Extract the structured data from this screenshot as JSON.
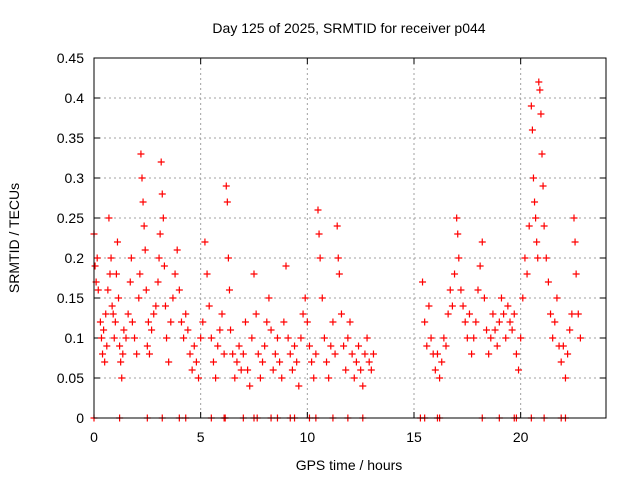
{
  "chart_data": {
    "type": "scatter",
    "title": "Day 125 of 2025, SRMTID for receiver p044",
    "xlabel": "GPS time / hours",
    "ylabel": "SRMTID / TECUs",
    "xlim": [
      0,
      24
    ],
    "ylim": [
      0,
      0.45
    ],
    "xticks": [
      0,
      5,
      10,
      15,
      20
    ],
    "yticks": [
      0,
      0.05,
      0.1,
      0.15,
      0.2,
      0.25,
      0.3,
      0.35,
      0.4,
      0.45
    ],
    "grid": true,
    "marker": "+",
    "series": [
      {
        "name": "SRMTID",
        "color": "#ff0000",
        "points": [
          [
            0.0,
            0.23
          ],
          [
            0.05,
            0.19
          ],
          [
            0.1,
            0.17
          ],
          [
            0.15,
            0.2
          ],
          [
            0.2,
            0.16
          ],
          [
            0.3,
            0.12
          ],
          [
            0.35,
            0.1
          ],
          [
            0.4,
            0.08
          ],
          [
            0.45,
            0.11
          ],
          [
            0.5,
            0.07
          ],
          [
            0.55,
            0.13
          ],
          [
            0.6,
            0.09
          ],
          [
            0.65,
            0.16
          ],
          [
            0.7,
            0.25
          ],
          [
            0.75,
            0.18
          ],
          [
            0.8,
            0.2
          ],
          [
            0.85,
            0.14
          ],
          [
            0.9,
            0.13
          ],
          [
            0.95,
            0.1
          ],
          [
            1.0,
            0.12
          ],
          [
            1.05,
            0.18
          ],
          [
            1.1,
            0.22
          ],
          [
            1.15,
            0.15
          ],
          [
            1.2,
            0.09
          ],
          [
            1.25,
            0.07
          ],
          [
            1.3,
            0.05
          ],
          [
            1.35,
            0.08
          ],
          [
            1.4,
            0.11
          ],
          [
            1.5,
            0.1
          ],
          [
            1.6,
            0.13
          ],
          [
            1.7,
            0.17
          ],
          [
            1.75,
            0.2
          ],
          [
            1.8,
            0.12
          ],
          [
            1.9,
            0.1
          ],
          [
            2.0,
            0.08
          ],
          [
            2.1,
            0.15
          ],
          [
            2.15,
            0.18
          ],
          [
            2.2,
            0.33
          ],
          [
            2.25,
            0.3
          ],
          [
            2.3,
            0.27
          ],
          [
            2.35,
            0.24
          ],
          [
            2.4,
            0.21
          ],
          [
            2.45,
            0.16
          ],
          [
            2.5,
            0.09
          ],
          [
            2.55,
            0.12
          ],
          [
            2.6,
            0.08
          ],
          [
            2.7,
            0.11
          ],
          [
            2.8,
            0.13
          ],
          [
            2.9,
            0.14
          ],
          [
            3.0,
            0.17
          ],
          [
            3.05,
            0.2
          ],
          [
            3.1,
            0.23
          ],
          [
            3.15,
            0.32
          ],
          [
            3.2,
            0.28
          ],
          [
            3.25,
            0.25
          ],
          [
            3.3,
            0.19
          ],
          [
            3.35,
            0.14
          ],
          [
            3.4,
            0.1
          ],
          [
            3.5,
            0.07
          ],
          [
            3.6,
            0.12
          ],
          [
            3.7,
            0.15
          ],
          [
            3.8,
            0.18
          ],
          [
            3.9,
            0.21
          ],
          [
            4.0,
            0.16
          ],
          [
            4.1,
            0.12
          ],
          [
            4.2,
            0.1
          ],
          [
            4.3,
            0.13
          ],
          [
            4.4,
            0.11
          ],
          [
            4.5,
            0.08
          ],
          [
            4.6,
            0.06
          ],
          [
            4.7,
            0.09
          ],
          [
            4.8,
            0.07
          ],
          [
            4.9,
            0.05
          ],
          [
            5.0,
            0.1
          ],
          [
            5.1,
            0.12
          ],
          [
            5.2,
            0.22
          ],
          [
            5.3,
            0.18
          ],
          [
            5.4,
            0.14
          ],
          [
            5.5,
            0.1
          ],
          [
            5.6,
            0.07
          ],
          [
            5.7,
            0.05
          ],
          [
            5.8,
            0.09
          ],
          [
            5.9,
            0.11
          ],
          [
            6.0,
            0.13
          ],
          [
            6.1,
            0.08
          ],
          [
            6.2,
            0.29
          ],
          [
            6.25,
            0.27
          ],
          [
            6.3,
            0.2
          ],
          [
            6.35,
            0.16
          ],
          [
            6.4,
            0.11
          ],
          [
            6.5,
            0.08
          ],
          [
            6.6,
            0.05
          ],
          [
            6.7,
            0.07
          ],
          [
            6.8,
            0.09
          ],
          [
            6.9,
            0.06
          ],
          [
            7.0,
            0.08
          ],
          [
            7.1,
            0.12
          ],
          [
            7.2,
            0.06
          ],
          [
            7.3,
            0.04
          ],
          [
            7.4,
            0.1
          ],
          [
            7.5,
            0.18
          ],
          [
            7.6,
            0.13
          ],
          [
            7.7,
            0.08
          ],
          [
            7.8,
            0.05
          ],
          [
            7.9,
            0.07
          ],
          [
            8.0,
            0.09
          ],
          [
            8.1,
            0.12
          ],
          [
            8.2,
            0.15
          ],
          [
            8.3,
            0.11
          ],
          [
            8.4,
            0.06
          ],
          [
            8.5,
            0.08
          ],
          [
            8.6,
            0.1
          ],
          [
            8.7,
            0.07
          ],
          [
            8.8,
            0.05
          ],
          [
            8.9,
            0.12
          ],
          [
            9.0,
            0.19
          ],
          [
            9.1,
            0.1
          ],
          [
            9.2,
            0.08
          ],
          [
            9.3,
            0.06
          ],
          [
            9.4,
            0.09
          ],
          [
            9.5,
            0.07
          ],
          [
            9.6,
            0.04
          ],
          [
            9.7,
            0.1
          ],
          [
            9.8,
            0.13
          ],
          [
            9.9,
            0.15
          ],
          [
            10.0,
            0.12
          ],
          [
            10.1,
            0.09
          ],
          [
            10.2,
            0.07
          ],
          [
            10.3,
            0.05
          ],
          [
            10.4,
            0.08
          ],
          [
            10.5,
            0.26
          ],
          [
            10.55,
            0.23
          ],
          [
            10.6,
            0.2
          ],
          [
            10.7,
            0.15
          ],
          [
            10.8,
            0.1
          ],
          [
            10.9,
            0.07
          ],
          [
            11.0,
            0.05
          ],
          [
            11.1,
            0.09
          ],
          [
            11.2,
            0.12
          ],
          [
            11.3,
            0.08
          ],
          [
            11.4,
            0.24
          ],
          [
            11.45,
            0.2
          ],
          [
            11.5,
            0.18
          ],
          [
            11.6,
            0.13
          ],
          [
            11.7,
            0.09
          ],
          [
            11.8,
            0.06
          ],
          [
            11.9,
            0.1
          ],
          [
            12.0,
            0.12
          ],
          [
            12.1,
            0.08
          ],
          [
            12.2,
            0.05
          ],
          [
            12.3,
            0.07
          ],
          [
            12.4,
            0.09
          ],
          [
            12.5,
            0.06
          ],
          [
            12.6,
            0.04
          ],
          [
            12.7,
            0.08
          ],
          [
            12.8,
            0.1
          ],
          [
            12.9,
            0.07
          ],
          [
            13.0,
            0.06
          ],
          [
            13.1,
            0.08
          ],
          [
            15.4,
            0.17
          ],
          [
            15.5,
            0.12
          ],
          [
            15.6,
            0.09
          ],
          [
            15.7,
            0.14
          ],
          [
            15.8,
            0.1
          ],
          [
            15.9,
            0.08
          ],
          [
            16.0,
            0.06
          ],
          [
            16.1,
            0.08
          ],
          [
            16.2,
            0.05
          ],
          [
            16.3,
            0.07
          ],
          [
            16.4,
            0.1
          ],
          [
            16.5,
            0.09
          ],
          [
            16.6,
            0.13
          ],
          [
            16.7,
            0.16
          ],
          [
            16.8,
            0.14
          ],
          [
            16.9,
            0.18
          ],
          [
            17.0,
            0.25
          ],
          [
            17.05,
            0.23
          ],
          [
            17.1,
            0.2
          ],
          [
            17.2,
            0.16
          ],
          [
            17.3,
            0.14
          ],
          [
            17.4,
            0.12
          ],
          [
            17.5,
            0.1
          ],
          [
            17.6,
            0.13
          ],
          [
            17.7,
            0.08
          ],
          [
            17.8,
            0.1
          ],
          [
            17.9,
            0.12
          ],
          [
            18.0,
            0.16
          ],
          [
            18.1,
            0.19
          ],
          [
            18.2,
            0.22
          ],
          [
            18.3,
            0.15
          ],
          [
            18.4,
            0.11
          ],
          [
            18.5,
            0.08
          ],
          [
            18.6,
            0.1
          ],
          [
            18.7,
            0.13
          ],
          [
            18.8,
            0.11
          ],
          [
            18.9,
            0.09
          ],
          [
            19.0,
            0.12
          ],
          [
            19.1,
            0.15
          ],
          [
            19.2,
            0.13
          ],
          [
            19.3,
            0.1
          ],
          [
            19.4,
            0.14
          ],
          [
            19.5,
            0.12
          ],
          [
            19.6,
            0.11
          ],
          [
            19.7,
            0.13
          ],
          [
            19.8,
            0.08
          ],
          [
            19.9,
            0.06
          ],
          [
            20.0,
            0.1
          ],
          [
            20.1,
            0.15
          ],
          [
            20.2,
            0.2
          ],
          [
            20.3,
            0.18
          ],
          [
            20.4,
            0.24
          ],
          [
            20.5,
            0.39
          ],
          [
            20.55,
            0.36
          ],
          [
            20.6,
            0.3
          ],
          [
            20.65,
            0.27
          ],
          [
            20.7,
            0.25
          ],
          [
            20.75,
            0.22
          ],
          [
            20.8,
            0.2
          ],
          [
            20.85,
            0.42
          ],
          [
            20.9,
            0.41
          ],
          [
            20.95,
            0.38
          ],
          [
            21.0,
            0.33
          ],
          [
            21.05,
            0.29
          ],
          [
            21.1,
            0.24
          ],
          [
            21.2,
            0.2
          ],
          [
            21.3,
            0.17
          ],
          [
            21.4,
            0.13
          ],
          [
            21.5,
            0.1
          ],
          [
            21.6,
            0.12
          ],
          [
            21.7,
            0.15
          ],
          [
            21.8,
            0.09
          ],
          [
            21.9,
            0.07
          ],
          [
            22.0,
            0.09
          ],
          [
            22.1,
            0.05
          ],
          [
            22.2,
            0.08
          ],
          [
            22.3,
            0.11
          ],
          [
            22.4,
            0.13
          ],
          [
            22.5,
            0.25
          ],
          [
            22.55,
            0.22
          ],
          [
            22.6,
            0.18
          ],
          [
            22.7,
            0.13
          ],
          [
            22.8,
            0.1
          ],
          [
            0.0,
            0.0
          ],
          [
            1.2,
            0.0
          ],
          [
            2.5,
            0.0
          ],
          [
            3.2,
            0.0
          ],
          [
            4.0,
            0.0
          ],
          [
            4.3,
            0.0
          ],
          [
            5.5,
            0.0
          ],
          [
            6.1,
            0.0
          ],
          [
            6.15,
            0.0
          ],
          [
            7.0,
            0.0
          ],
          [
            7.5,
            0.0
          ],
          [
            7.65,
            0.0
          ],
          [
            8.3,
            0.0
          ],
          [
            8.6,
            0.0
          ],
          [
            9.2,
            0.0
          ],
          [
            9.4,
            0.0
          ],
          [
            10.1,
            0.0
          ],
          [
            10.4,
            0.0
          ],
          [
            11.2,
            0.0
          ],
          [
            11.9,
            0.0
          ],
          [
            12.6,
            0.0
          ],
          [
            15.3,
            0.0
          ],
          [
            15.5,
            0.0
          ],
          [
            16.1,
            0.0
          ],
          [
            16.2,
            0.0
          ],
          [
            18.2,
            0.0
          ],
          [
            19.0,
            0.0
          ],
          [
            19.7,
            0.0
          ],
          [
            19.8,
            0.0
          ],
          [
            20.5,
            0.0
          ],
          [
            21.1,
            0.0
          ],
          [
            21.9,
            0.0
          ],
          [
            22.1,
            0.0
          ]
        ]
      }
    ]
  }
}
